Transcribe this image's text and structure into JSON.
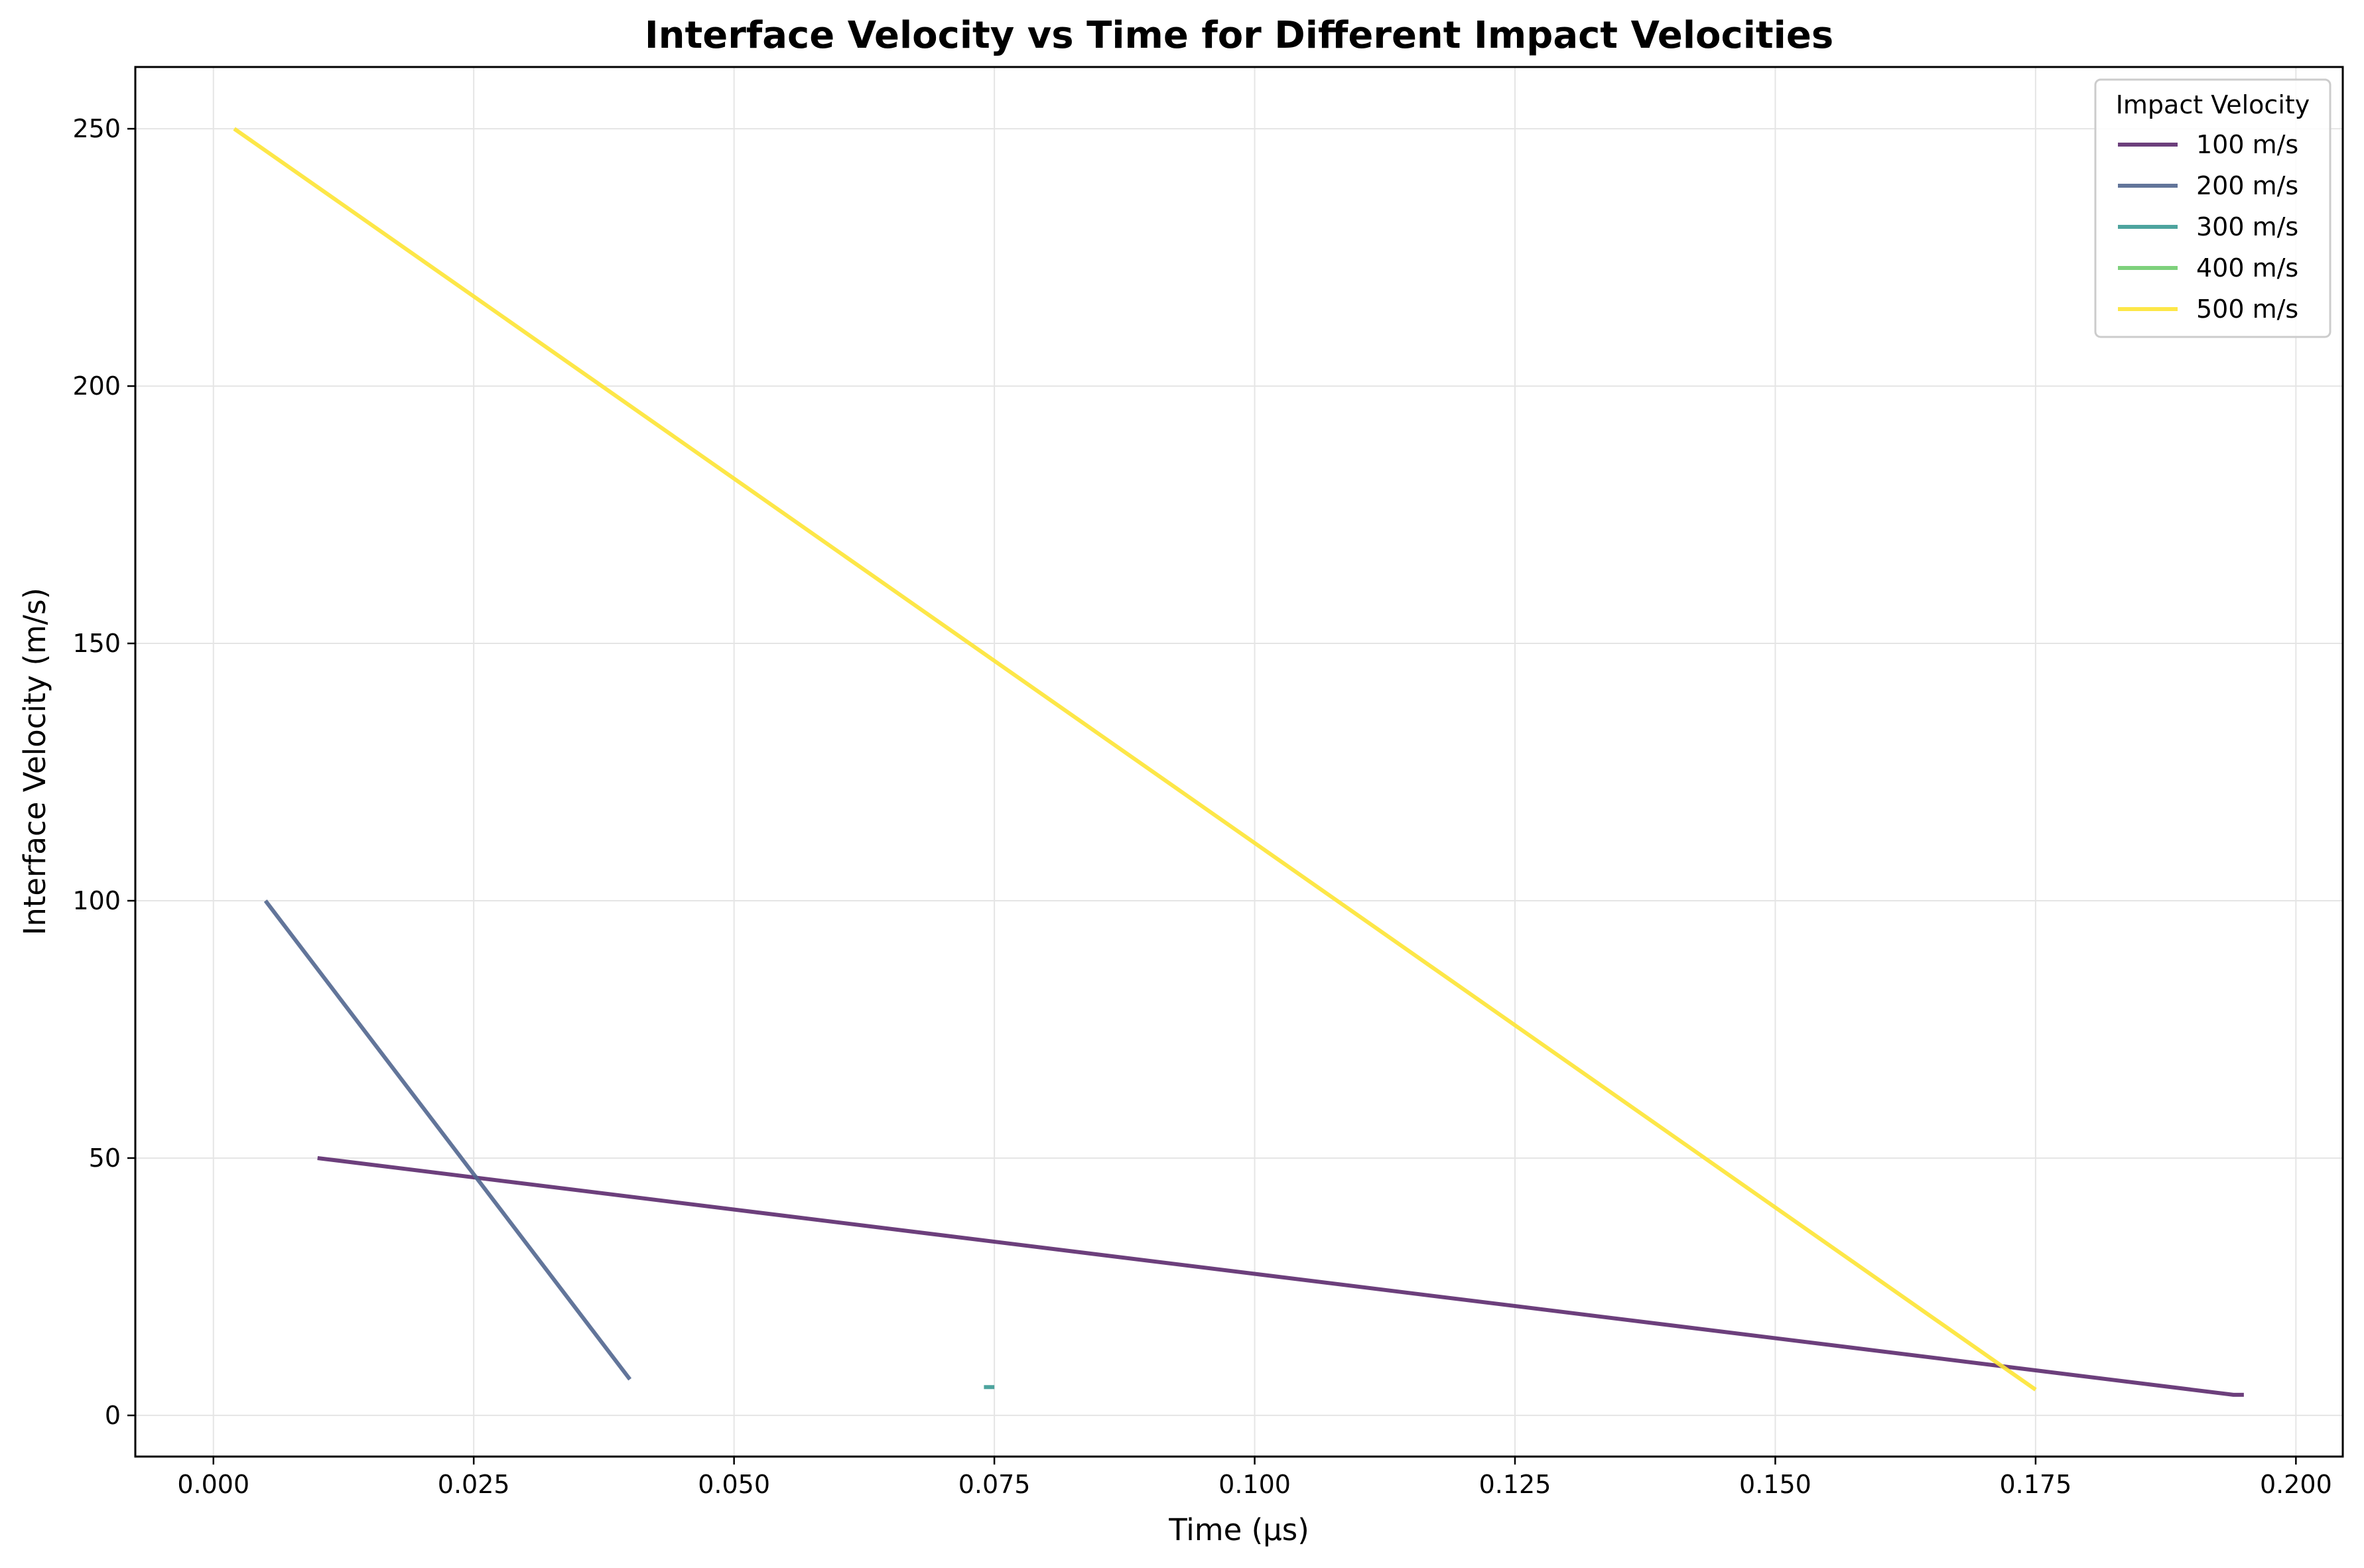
{
  "chart_data": {
    "type": "line",
    "title": "Interface Velocity vs Time for Different Impact Velocities",
    "xlabel": "Time (µs)",
    "ylabel": "Interface Velocity (m/s)",
    "xlim": [
      -0.0075,
      0.2045
    ],
    "ylim": [
      -8,
      262
    ],
    "xticks": [
      0.0,
      0.025,
      0.05,
      0.075,
      0.1,
      0.125,
      0.15,
      0.175,
      0.2
    ],
    "xtick_labels": [
      "0.000",
      "0.025",
      "0.050",
      "0.075",
      "0.100",
      "0.125",
      "0.150",
      "0.175",
      "0.200"
    ],
    "yticks": [
      0,
      50,
      100,
      150,
      200,
      250
    ],
    "ytick_labels": [
      "0",
      "50",
      "100",
      "150",
      "200",
      "250"
    ],
    "grid": true,
    "legend": {
      "title": "Impact Velocity",
      "placement": "top-right"
    },
    "series": [
      {
        "name": "100 m/s",
        "color": "#5c2a6e",
        "x": [
          0.01,
          0.194,
          0.195
        ],
        "y": [
          50,
          4,
          4
        ]
      },
      {
        "name": "200 m/s",
        "color": "#51668f",
        "x": [
          0.005,
          0.04
        ],
        "y": [
          100,
          7
        ]
      },
      {
        "name": "300 m/s",
        "color": "#3a9a94",
        "x": [
          0.074,
          0.075
        ],
        "y": [
          5.5,
          5.5
        ]
      },
      {
        "name": "400 m/s",
        "color": "#70cc6e",
        "x": [],
        "y": []
      },
      {
        "name": "500 m/s",
        "color": "#fde434",
        "x": [
          0.002,
          0.175
        ],
        "y": [
          250,
          5
        ]
      }
    ]
  }
}
